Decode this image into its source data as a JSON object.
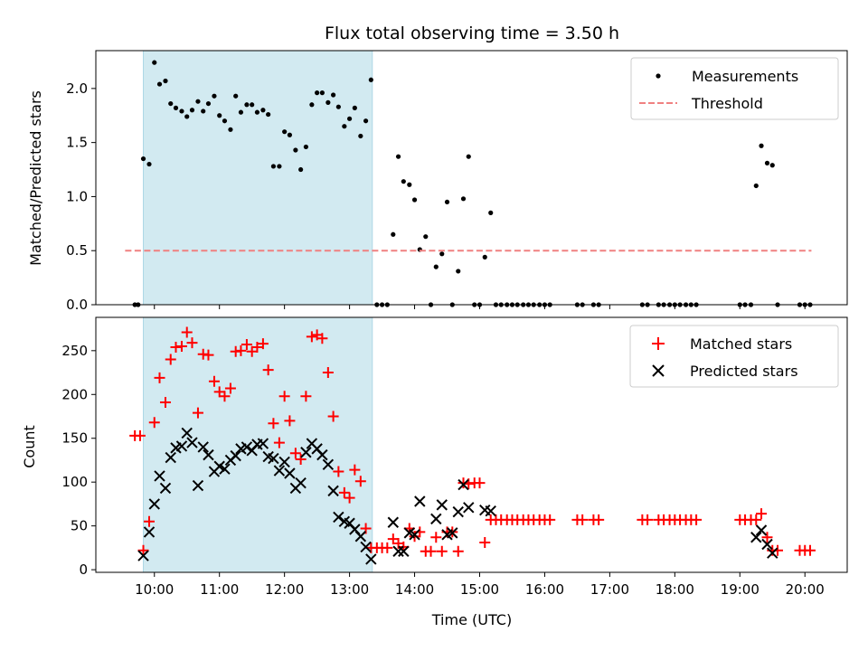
{
  "figure": {
    "title": "Flux total observing time = 3.50 h",
    "xlabel": "Time (UTC)",
    "x_ticks": [
      "10:00",
      "11:00",
      "12:00",
      "13:00",
      "14:00",
      "15:00",
      "16:00",
      "17:00",
      "18:00",
      "19:00",
      "20:00"
    ],
    "x_tick_values_hours": [
      10,
      11,
      12,
      13,
      14,
      15,
      16,
      17,
      18,
      19,
      20
    ],
    "xlim_hours": [
      9.1,
      20.65
    ],
    "observing_window_hours": [
      9.83,
      13.35
    ],
    "observing_window_color": "#add8e6"
  },
  "chart_data": [
    {
      "type": "scatter",
      "ylabel": "Matched/Predicted stars",
      "ylim": [
        0,
        2.35
      ],
      "y_ticks": [
        "0.0",
        "0.5",
        "1.0",
        "1.5",
        "2.0"
      ],
      "y_tick_values": [
        0,
        0.5,
        1.0,
        1.5,
        2.0
      ],
      "legend_placement": "top-right",
      "series": [
        {
          "name": "Measurements",
          "marker": "dot",
          "color": "#000000",
          "x": [
            9.7,
            9.75,
            9.83,
            9.92,
            10.0,
            10.08,
            10.17,
            10.25,
            10.33,
            10.42,
            10.5,
            10.58,
            10.67,
            10.75,
            10.83,
            10.92,
            11.0,
            11.08,
            11.17,
            11.25,
            11.33,
            11.42,
            11.5,
            11.58,
            11.67,
            11.75,
            11.83,
            11.92,
            12.0,
            12.08,
            12.17,
            12.25,
            12.33,
            12.42,
            12.5,
            12.58,
            12.67,
            12.75,
            12.83,
            12.92,
            13.0,
            13.08,
            13.17,
            13.25,
            13.33,
            13.42,
            13.5,
            13.58,
            13.67,
            13.75,
            13.83,
            13.92,
            14.0,
            14.08,
            14.17,
            14.25,
            14.33,
            14.42,
            14.5,
            14.58,
            14.67,
            14.75,
            14.83,
            14.92,
            15.0,
            15.08,
            15.17,
            15.25,
            15.33,
            15.42,
            15.5,
            15.58,
            15.67,
            15.75,
            15.83,
            15.92,
            16.0,
            16.08,
            16.5,
            16.58,
            16.75,
            16.83,
            17.5,
            17.58,
            17.75,
            17.83,
            17.92,
            18.0,
            18.08,
            18.17,
            18.25,
            18.33,
            19.0,
            19.08,
            19.17,
            19.25,
            19.33,
            19.42,
            19.5,
            19.58,
            19.92,
            20.0,
            20.08
          ],
          "y": [
            0,
            0,
            1.35,
            1.3,
            2.24,
            2.04,
            2.07,
            1.86,
            1.82,
            1.79,
            1.74,
            1.8,
            1.88,
            1.79,
            1.86,
            1.93,
            1.75,
            1.7,
            1.62,
            1.93,
            1.78,
            1.85,
            1.85,
            1.78,
            1.8,
            1.76,
            1.28,
            1.28,
            1.6,
            1.57,
            1.43,
            1.25,
            1.46,
            1.85,
            1.96,
            1.96,
            1.87,
            1.94,
            1.83,
            1.65,
            1.72,
            1.82,
            1.56,
            1.7,
            2.08,
            0,
            0,
            0,
            0.65,
            1.37,
            1.14,
            1.11,
            0.97,
            0.51,
            0.63,
            0,
            0.35,
            0.47,
            0.95,
            0,
            0.31,
            0.98,
            1.37,
            0,
            0,
            0.44,
            0.85,
            0,
            0,
            0,
            0,
            0,
            0,
            0,
            0,
            0,
            0,
            0,
            0,
            0,
            0,
            0,
            0,
            0,
            0,
            0,
            0,
            0,
            0,
            0,
            0,
            0,
            0,
            0,
            0,
            1.1,
            1.47,
            1.31,
            1.29,
            0,
            0,
            0,
            0
          ]
        },
        {
          "name": "Threshold",
          "marker": "dashed-line",
          "color": "#f08080",
          "x": [
            9.55,
            20.1
          ],
          "y": [
            0.5,
            0.5
          ]
        }
      ]
    },
    {
      "type": "scatter",
      "ylabel": "Count",
      "ylim": [
        -3,
        288
      ],
      "y_ticks": [
        "0",
        "50",
        "100",
        "150",
        "200",
        "250"
      ],
      "y_tick_values": [
        0,
        50,
        100,
        150,
        200,
        250
      ],
      "legend_placement": "top-right",
      "series": [
        {
          "name": "Matched stars",
          "marker": "plus",
          "color": "#ff0000",
          "x": [
            9.7,
            9.78,
            9.83,
            9.92,
            10.0,
            10.08,
            10.17,
            10.25,
            10.33,
            10.42,
            10.5,
            10.58,
            10.67,
            10.75,
            10.83,
            10.92,
            11.0,
            11.08,
            11.17,
            11.25,
            11.33,
            11.42,
            11.5,
            11.58,
            11.67,
            11.75,
            11.83,
            11.92,
            12.0,
            12.08,
            12.17,
            12.25,
            12.33,
            12.42,
            12.5,
            12.58,
            12.67,
            12.75,
            12.83,
            12.92,
            13.0,
            13.08,
            13.17,
            13.25,
            13.33,
            13.42,
            13.5,
            13.58,
            13.67,
            13.75,
            13.83,
            13.92,
            14.0,
            14.08,
            14.17,
            14.25,
            14.33,
            14.42,
            14.5,
            14.58,
            14.67,
            14.75,
            14.83,
            14.92,
            15.0,
            15.08,
            15.17,
            15.25,
            15.33,
            15.42,
            15.5,
            15.58,
            15.67,
            15.75,
            15.83,
            15.92,
            16.0,
            16.08,
            16.5,
            16.58,
            16.75,
            16.83,
            17.5,
            17.58,
            17.75,
            17.83,
            17.92,
            18.0,
            18.08,
            18.17,
            18.25,
            18.33,
            19.0,
            19.08,
            19.17,
            19.25,
            19.33,
            19.42,
            19.5,
            19.58,
            19.92,
            20.0,
            20.08
          ],
          "y": [
            153,
            153,
            22,
            55,
            168,
            219,
            191,
            240,
            254,
            255,
            271,
            259,
            179,
            246,
            245,
            215,
            203,
            198,
            207,
            249,
            250,
            257,
            249,
            254,
            258,
            228,
            167,
            145,
            198,
            170,
            133,
            126,
            198,
            266,
            268,
            264,
            225,
            175,
            112,
            88,
            82,
            114,
            101,
            47,
            25,
            25,
            25,
            25,
            35,
            30,
            26,
            47,
            38,
            43,
            21,
            21,
            37,
            21,
            43,
            43,
            21,
            99,
            98,
            99,
            99,
            31,
            57,
            57,
            57,
            57,
            57,
            57,
            57,
            57,
            57,
            57,
            57,
            57,
            57,
            57,
            57,
            57,
            57,
            57,
            57,
            57,
            57,
            57,
            57,
            57,
            57,
            57,
            57,
            57,
            57,
            57,
            64,
            37,
            22,
            22,
            22,
            22,
            22
          ]
        },
        {
          "name": "Predicted stars",
          "marker": "x",
          "color": "#000000",
          "x": [
            9.83,
            9.92,
            10.0,
            10.08,
            10.17,
            10.25,
            10.33,
            10.42,
            10.5,
            10.58,
            10.67,
            10.75,
            10.83,
            10.92,
            11.0,
            11.08,
            11.17,
            11.25,
            11.33,
            11.42,
            11.5,
            11.58,
            11.67,
            11.75,
            11.83,
            11.92,
            12.0,
            12.08,
            12.17,
            12.25,
            12.33,
            12.42,
            12.5,
            12.58,
            12.67,
            12.75,
            12.83,
            12.92,
            13.0,
            13.08,
            13.17,
            13.25,
            13.33,
            13.67,
            13.75,
            13.83,
            13.92,
            14.0,
            14.08,
            14.33,
            14.42,
            14.5,
            14.58,
            14.67,
            14.75,
            14.83,
            15.08,
            15.17,
            19.25,
            19.33,
            19.42,
            19.5
          ],
          "y": [
            16,
            43,
            75,
            107,
            93,
            128,
            139,
            141,
            156,
            145,
            96,
            140,
            131,
            112,
            118,
            115,
            125,
            130,
            138,
            140,
            136,
            143,
            144,
            129,
            127,
            113,
            123,
            110,
            93,
            99,
            134,
            144,
            138,
            131,
            120,
            90,
            60,
            55,
            53,
            46,
            38,
            26,
            12,
            54,
            21,
            21,
            42,
            40,
            78,
            58,
            74,
            40,
            42,
            66,
            97,
            71,
            68,
            67,
            37,
            45,
            29,
            19
          ]
        }
      ]
    }
  ]
}
